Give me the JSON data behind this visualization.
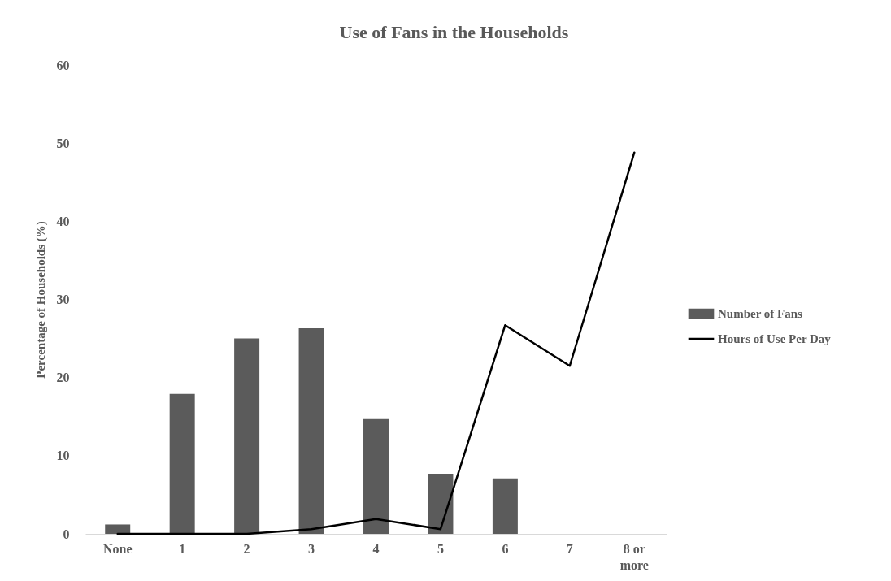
{
  "chart_data": {
    "type": "bar",
    "title": "Use of Fans in the Households",
    "ylabel": "Percentage of Households (%)",
    "categories": [
      "None",
      "1",
      "2",
      "3",
      "4",
      "5",
      "6",
      "7",
      "8 or more"
    ],
    "series": [
      {
        "name": "Number of Fans",
        "color": "#5b5b5b",
        "values": [
          1.2,
          17.9,
          25.0,
          26.3,
          14.7,
          7.7,
          7.1,
          null,
          null
        ]
      },
      {
        "name": "Hours of Use Per Day",
        "type": "line",
        "color": "#000000",
        "values": [
          0,
          0,
          0,
          0.6,
          1.9,
          0.6,
          26.7,
          21.5,
          48.8
        ]
      }
    ],
    "ylim": [
      0,
      60
    ],
    "yticks": [
      0,
      10,
      20,
      30,
      40,
      50,
      60
    ],
    "grid": false,
    "legend": "right",
    "marker": "none",
    "line_style": "solid"
  }
}
